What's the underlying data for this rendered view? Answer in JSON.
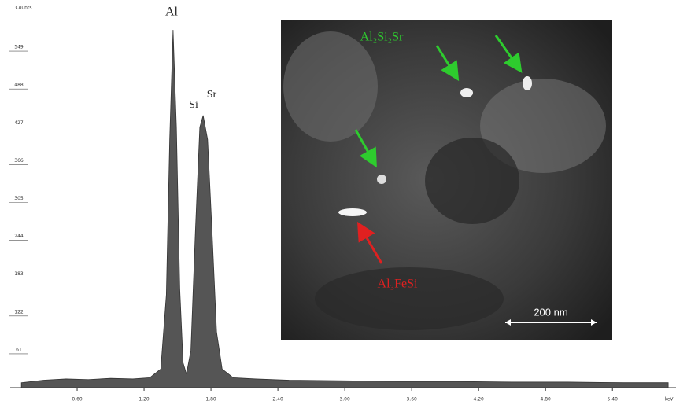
{
  "chart_data": {
    "type": "area",
    "y_label": "Counts",
    "x_label": "keV",
    "x": [
      0.1,
      0.3,
      0.5,
      0.7,
      0.9,
      1.1,
      1.25,
      1.35,
      1.4,
      1.43,
      1.46,
      1.49,
      1.52,
      1.55,
      1.58,
      1.62,
      1.66,
      1.7,
      1.73,
      1.77,
      1.81,
      1.85,
      1.9,
      2.0,
      2.2,
      2.5,
      3.0,
      3.5,
      4.0,
      4.5,
      5.0,
      5.5,
      5.9
    ],
    "values": [
      8,
      12,
      14,
      13,
      15,
      14,
      16,
      30,
      150,
      400,
      577,
      420,
      160,
      40,
      22,
      60,
      250,
      420,
      439,
      400,
      250,
      90,
      30,
      16,
      14,
      12,
      11,
      10,
      10,
      9,
      9,
      8,
      8
    ],
    "color": "#555555",
    "xlim": [
      0,
      5.97
    ],
    "ylim": [
      0,
      610
    ],
    "xticks": [
      {
        "value": 0.6,
        "label": "0.60"
      },
      {
        "value": 1.2,
        "label": "1.20"
      },
      {
        "value": 1.8,
        "label": "1.80"
      },
      {
        "value": 2.4,
        "label": "2.40"
      },
      {
        "value": 3.0,
        "label": "3.00"
      },
      {
        "value": 3.6,
        "label": "3.60"
      },
      {
        "value": 4.2,
        "label": "4.20"
      },
      {
        "value": 4.8,
        "label": "4.80"
      },
      {
        "value": 5.4,
        "label": "5.40"
      }
    ],
    "yticks": [
      61,
      122,
      183,
      244,
      305,
      366,
      427,
      488,
      549
    ],
    "annotations": [
      "Al",
      "Si",
      "Sr"
    ],
    "inset_labels": [
      "Al₂Si₂Sr",
      "Al₃FeSi",
      "200 nm"
    ]
  }
}
